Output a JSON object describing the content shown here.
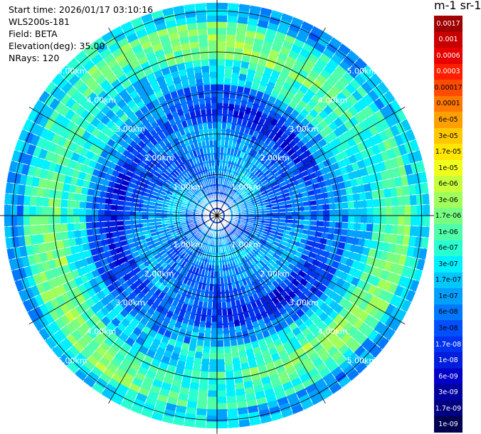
{
  "info": {
    "start_time": "Start time: 2026/01/17 03:10:16",
    "instrument": "WLS200s-181",
    "field": "Field: BETA",
    "elevation": "Elevation(deg): 35.00",
    "nrays": "NRays: 120"
  },
  "colorbar": {
    "unit": "m-1 sr-1",
    "ticks": [
      "0.0017",
      "0.001",
      "0.0006",
      "0.0003",
      "0.00017",
      "0.0001",
      "6e-05",
      "3e-05",
      "1.7e-05",
      "1e-05",
      "6e-06",
      "3e-06",
      "1.7e-06",
      "1e-06",
      "6e-07",
      "3e-07",
      "1.7e-07",
      "1e-07",
      "6e-08",
      "3e-08",
      "1.7e-08",
      "1e-08",
      "6e-09",
      "3e-09",
      "1.7e-09",
      "1e-09"
    ],
    "colors": [
      "#a00000",
      "#c80000",
      "#e60000",
      "#ff1e00",
      "#ff4b00",
      "#ff7800",
      "#ffa000",
      "#ffc800",
      "#ffe600",
      "#f0ff1e",
      "#c8ff3c",
      "#a0ff5a",
      "#78ff82",
      "#50ffaa",
      "#28ffd2",
      "#00f0ff",
      "#00c8ff",
      "#00a0ff",
      "#0078ff",
      "#0050ff",
      "#0032f0",
      "#001edc",
      "#0000c8",
      "#0000a0",
      "#000080",
      "#000050"
    ],
    "tick_text_colors": [
      "#ffffff",
      "#ffffff",
      "#ffffff",
      "#ffffff",
      "#000000",
      "#000000",
      "#000000",
      "#000000",
      "#000000",
      "#000000",
      "#000000",
      "#000000",
      "#000000",
      "#000000",
      "#000000",
      "#000000",
      "#000000",
      "#000000",
      "#000000",
      "#000000",
      "#ffffff",
      "#ffffff",
      "#ffffff",
      "#ffffff",
      "#ffffff",
      "#ffffff"
    ]
  },
  "chart_data": {
    "type": "heatmap",
    "projection": "polar PPI",
    "n_rays": 120,
    "max_range_km": 5.2,
    "range_ring_labels": [
      "1.00km",
      "2.00km",
      "3.00km",
      "4.00km",
      "5.00km"
    ],
    "range_rings_km": [
      1,
      2,
      3,
      4,
      5
    ],
    "radial_profile": [
      {
        "range_km": 0.0,
        "value": "1.7e-08"
      },
      {
        "range_km": 0.5,
        "value": "6e-08"
      },
      {
        "range_km": 1.0,
        "value": "1e-07"
      },
      {
        "range_km": 1.5,
        "value": "6e-08"
      },
      {
        "range_km": 2.0,
        "value": "6e-08"
      },
      {
        "range_km": 2.5,
        "value": "1.7e-08"
      },
      {
        "range_km": 3.0,
        "value": "6e-08"
      },
      {
        "range_km": 3.5,
        "value": "3e-07"
      },
      {
        "range_km": 4.0,
        "value": "1e-06"
      },
      {
        "range_km": 4.5,
        "value": "1e-06"
      },
      {
        "range_km": 5.0,
        "value": "1.7e-07"
      }
    ],
    "colors": {
      "ring_line": "#000000",
      "ring_label": "#ffffff",
      "ray_gap": "#ffffff"
    }
  }
}
